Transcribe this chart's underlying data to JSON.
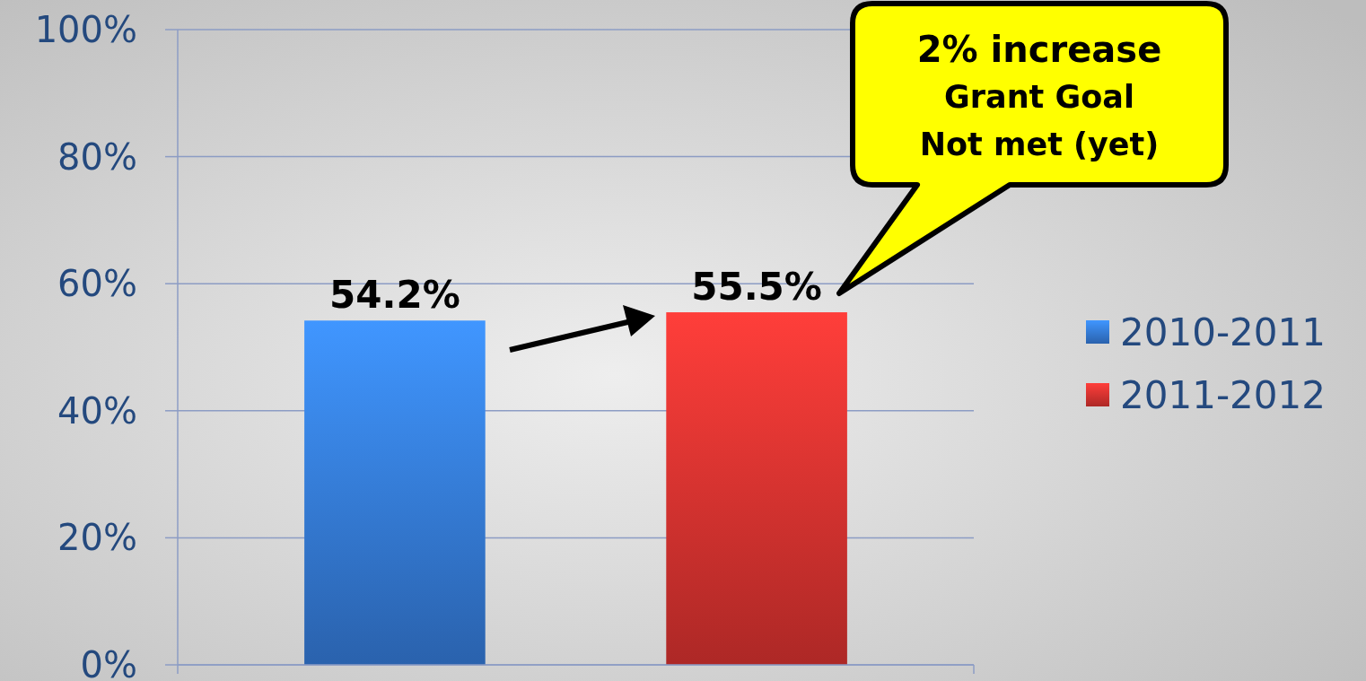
{
  "chart_data": {
    "type": "bar",
    "categories": [
      null
    ],
    "series": [
      {
        "name": "2010-2011",
        "color": "#3479d6",
        "values": [
          54.2
        ],
        "value_labels": [
          "54.2%"
        ]
      },
      {
        "name": "2011-2012",
        "color": "#d6322f",
        "values": [
          55.5
        ],
        "value_labels": [
          "55.5%"
        ]
      }
    ],
    "ylim": [
      0,
      100
    ],
    "yticks": [
      {
        "value": 0,
        "label": "0%"
      },
      {
        "value": 20,
        "label": "20%"
      },
      {
        "value": 40,
        "label": "40%"
      },
      {
        "value": 60,
        "label": "60%"
      },
      {
        "value": 80,
        "label": "80%"
      },
      {
        "value": 100,
        "label": "100%"
      }
    ],
    "grid": "y",
    "legend": "right",
    "annotations": [
      "2% increase\nGrant Goal\nNot met (yet)"
    ]
  }
}
